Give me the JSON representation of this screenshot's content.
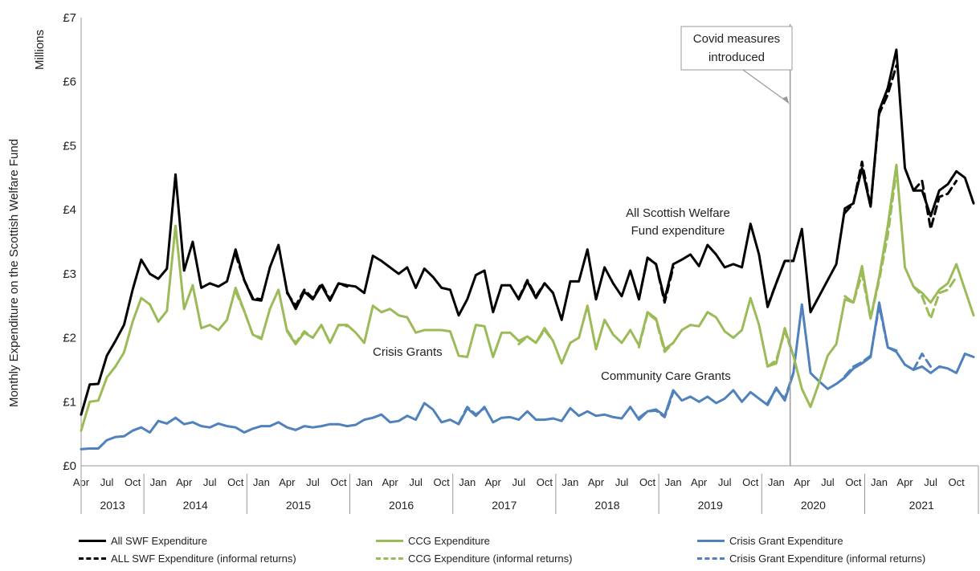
{
  "chart_data": {
    "type": "line",
    "ylabel": "Monthly Expenditure on the Scottish Welfare Fund",
    "yunit": "Millions",
    "ylim": [
      0,
      7
    ],
    "yticks": [
      "£0",
      "£1",
      "£2",
      "£3",
      "£4",
      "£5",
      "£6",
      "£7"
    ],
    "month_ticks": [
      "Apr",
      "Jul",
      "Oct",
      "Jan",
      "Apr",
      "Jul",
      "Oct",
      "Jan",
      "Apr",
      "Jul",
      "Oct",
      "Jan",
      "Apr",
      "Jul",
      "Oct",
      "Jan",
      "Apr",
      "Jul",
      "Oct",
      "Jan",
      "Apr",
      "Jul",
      "Oct",
      "Jan",
      "Apr",
      "Jul",
      "Oct",
      "Jan",
      "Apr",
      "Jul",
      "Oct",
      "Jan",
      "Apr",
      "Jul",
      "Oct"
    ],
    "years": [
      "2013",
      "2014",
      "2015",
      "2016",
      "2017",
      "2018",
      "2019",
      "2020",
      "2021"
    ],
    "x_start": "2013-04",
    "x_end": "2021-12",
    "grid": false,
    "annotations": {
      "covid": "Covid measures introduced",
      "covid_line1": "Covid measures",
      "covid_line2": "introduced",
      "covid_date": "2020-03",
      "all_swf_line1": "All Scottish Welfare",
      "all_swf_line2": "Fund expenditure",
      "crisis": "Crisis Grants",
      "ccg": "Community Care Grants"
    },
    "series": [
      {
        "name": "All SWF Expenditure",
        "color": "#000000",
        "dash": false,
        "values": [
          0.8,
          1.27,
          1.28,
          1.72,
          1.95,
          2.2,
          2.75,
          3.22,
          3.0,
          2.92,
          3.08,
          4.55,
          3.05,
          3.5,
          2.78,
          2.85,
          2.8,
          2.88,
          3.38,
          2.9,
          2.6,
          2.58,
          3.1,
          3.45,
          2.72,
          2.45,
          2.72,
          2.6,
          2.82,
          2.58,
          2.85,
          2.82,
          2.8,
          2.7,
          3.28,
          3.2,
          3.1,
          3.0,
          3.1,
          2.78,
          3.08,
          2.95,
          2.78,
          2.75,
          2.35,
          2.6,
          2.98,
          3.05,
          2.4,
          2.82,
          2.82,
          2.6,
          2.88,
          2.62,
          2.85,
          2.7,
          2.28,
          2.88,
          2.88,
          3.38,
          2.6,
          3.1,
          2.85,
          2.65,
          3.05,
          2.6,
          3.25,
          3.15,
          2.6,
          3.15,
          3.22,
          3.3,
          3.12,
          3.45,
          3.3,
          3.1,
          3.15,
          3.1,
          3.78,
          3.3,
          2.48,
          2.85,
          3.2,
          3.2,
          3.7,
          2.4,
          2.65,
          2.9,
          3.15,
          4.02,
          4.1,
          4.65,
          4.05,
          5.55,
          5.9,
          6.5,
          4.65,
          4.3,
          4.3,
          3.9,
          4.3,
          4.4,
          4.6,
          4.5,
          4.1
        ]
      },
      {
        "name": "ALL SWF Expenditure (informal returns)",
        "color": "#000000",
        "dash": true,
        "values": [
          null,
          null,
          null,
          null,
          null,
          null,
          null,
          null,
          null,
          null,
          null,
          null,
          null,
          null,
          null,
          null,
          null,
          null,
          3.3,
          2.9,
          2.62,
          2.6,
          null,
          null,
          2.7,
          2.5,
          2.75,
          2.62,
          2.85,
          2.6,
          2.85,
          2.8,
          null,
          null,
          null,
          null,
          null,
          null,
          null,
          null,
          null,
          null,
          null,
          null,
          null,
          null,
          null,
          null,
          null,
          null,
          null,
          2.62,
          2.9,
          2.65,
          2.85,
          2.7,
          null,
          null,
          null,
          null,
          null,
          null,
          null,
          null,
          null,
          2.6,
          3.25,
          3.15,
          2.55,
          3.1,
          null,
          null,
          null,
          null,
          null,
          null,
          null,
          null,
          null,
          null,
          2.5,
          2.85,
          3.2,
          3.2,
          null,
          null,
          null,
          null,
          null,
          3.95,
          4.1,
          4.75,
          4.05,
          5.5,
          5.8,
          6.25,
          null,
          4.3,
          4.45,
          3.7,
          4.2,
          4.25,
          4.45,
          null,
          null
        ]
      },
      {
        "name": "CCG Expenditure",
        "color": "#9BBB59",
        "dash": false,
        "values": [
          0.55,
          1.0,
          1.02,
          1.38,
          1.55,
          1.77,
          2.25,
          2.62,
          2.52,
          2.25,
          2.42,
          3.75,
          2.45,
          2.82,
          2.15,
          2.2,
          2.12,
          2.28,
          2.78,
          2.42,
          2.05,
          1.98,
          2.45,
          2.75,
          2.1,
          1.9,
          2.08,
          2.0,
          2.2,
          1.92,
          2.2,
          2.2,
          2.08,
          1.92,
          2.5,
          2.4,
          2.45,
          2.35,
          2.32,
          2.08,
          2.12,
          2.12,
          2.12,
          2.1,
          1.72,
          1.7,
          2.2,
          2.18,
          1.7,
          2.08,
          2.08,
          1.95,
          2.02,
          1.92,
          2.15,
          1.95,
          1.6,
          1.92,
          2.0,
          2.5,
          1.82,
          2.28,
          2.05,
          1.92,
          2.12,
          1.88,
          2.4,
          2.3,
          1.82,
          1.92,
          2.12,
          2.2,
          2.18,
          2.4,
          2.32,
          2.1,
          2.0,
          2.12,
          2.62,
          2.2,
          1.55,
          1.6,
          2.15,
          1.72,
          1.2,
          0.92,
          1.3,
          1.72,
          1.9,
          2.6,
          2.55,
          3.12,
          2.3,
          2.95,
          3.75,
          4.7,
          3.1,
          2.8,
          2.7,
          2.55,
          2.75,
          2.85,
          3.15,
          2.75,
          2.35
        ]
      },
      {
        "name": "CCG Expenditure (informal returns)",
        "color": "#9BBB59",
        "dash": true,
        "values": [
          null,
          null,
          null,
          null,
          null,
          null,
          null,
          null,
          null,
          null,
          null,
          null,
          null,
          null,
          null,
          null,
          null,
          null,
          2.72,
          2.42,
          2.05,
          2.0,
          null,
          null,
          2.12,
          1.92,
          2.1,
          2.0,
          2.2,
          1.92,
          2.2,
          2.18,
          null,
          null,
          null,
          null,
          null,
          null,
          null,
          null,
          null,
          null,
          null,
          null,
          null,
          null,
          null,
          null,
          null,
          null,
          null,
          1.9,
          2.02,
          1.92,
          2.12,
          1.95,
          null,
          null,
          null,
          null,
          null,
          null,
          null,
          null,
          null,
          1.85,
          2.38,
          2.28,
          1.78,
          1.92,
          null,
          null,
          null,
          null,
          null,
          null,
          null,
          null,
          null,
          null,
          1.55,
          1.65,
          2.1,
          1.72,
          null,
          null,
          null,
          null,
          null,
          2.65,
          2.55,
          3.0,
          2.3,
          2.9,
          3.6,
          4.6,
          null,
          2.8,
          2.65,
          2.3,
          2.7,
          2.75,
          2.95,
          null,
          null
        ]
      },
      {
        "name": "Crisis Grant Expenditure",
        "color": "#4F81BD",
        "dash": false,
        "values": [
          0.26,
          0.27,
          0.27,
          0.4,
          0.45,
          0.46,
          0.55,
          0.6,
          0.52,
          0.7,
          0.66,
          0.75,
          0.65,
          0.68,
          0.62,
          0.6,
          0.66,
          0.62,
          0.6,
          0.52,
          0.58,
          0.62,
          0.62,
          0.68,
          0.6,
          0.56,
          0.62,
          0.6,
          0.62,
          0.65,
          0.65,
          0.62,
          0.64,
          0.72,
          0.75,
          0.8,
          0.68,
          0.7,
          0.78,
          0.72,
          0.98,
          0.88,
          0.68,
          0.72,
          0.65,
          0.9,
          0.78,
          0.92,
          0.68,
          0.75,
          0.76,
          0.72,
          0.85,
          0.72,
          0.72,
          0.74,
          0.7,
          0.9,
          0.78,
          0.85,
          0.78,
          0.8,
          0.76,
          0.74,
          0.92,
          0.72,
          0.85,
          0.88,
          0.78,
          1.18,
          1.02,
          1.08,
          1.0,
          1.08,
          0.98,
          1.05,
          1.18,
          1.0,
          1.15,
          1.05,
          0.95,
          1.22,
          1.02,
          1.45,
          2.52,
          1.45,
          1.32,
          1.2,
          1.28,
          1.38,
          1.52,
          1.6,
          1.7,
          2.55,
          1.85,
          1.78,
          1.58,
          1.5,
          1.55,
          1.45,
          1.55,
          1.52,
          1.45,
          1.75,
          1.7
        ]
      },
      {
        "name": "Crisis Grant Expenditure (informal returns)",
        "color": "#4F81BD",
        "dash": true,
        "values": [
          null,
          null,
          null,
          null,
          null,
          null,
          null,
          null,
          null,
          null,
          null,
          null,
          null,
          null,
          null,
          null,
          null,
          null,
          null,
          null,
          null,
          null,
          null,
          null,
          null,
          null,
          null,
          null,
          null,
          null,
          null,
          null,
          null,
          null,
          null,
          null,
          null,
          null,
          null,
          null,
          null,
          null,
          null,
          null,
          0.66,
          0.92,
          0.8,
          0.9,
          null,
          null,
          null,
          null,
          null,
          null,
          null,
          null,
          null,
          null,
          null,
          null,
          null,
          null,
          null,
          null,
          null,
          0.75,
          0.85,
          0.86,
          0.76,
          1.15,
          null,
          null,
          null,
          null,
          null,
          null,
          null,
          null,
          null,
          null,
          0.98,
          1.2,
          1.05,
          1.45,
          null,
          null,
          null,
          null,
          null,
          1.4,
          1.55,
          1.62,
          1.72,
          2.5,
          1.85,
          1.8,
          null,
          1.5,
          1.75,
          1.55,
          null,
          null,
          null,
          null,
          null
        ]
      }
    ]
  }
}
